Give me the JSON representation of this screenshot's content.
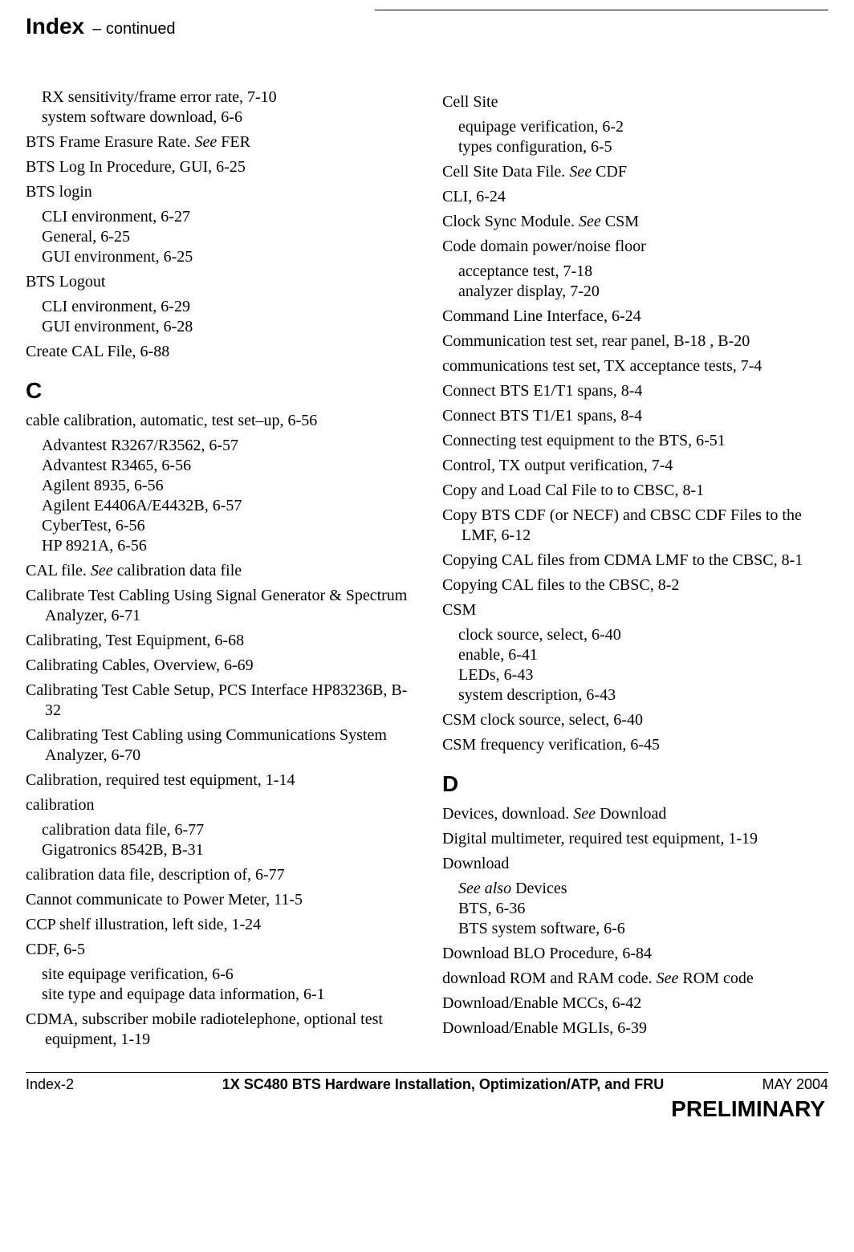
{
  "header": {
    "title": "Index",
    "suffix": "– continued"
  },
  "left_col": {
    "b_tail": {
      "rx": "RX sensitivity/frame error rate, 7-10",
      "sys": "system software download, 6-6",
      "bts_frame_a": "BTS Frame Erasure Rate. ",
      "bts_frame_see": "See",
      "bts_frame_b": " FER",
      "bts_login_proc": "BTS Log In Procedure, GUI, 6-25",
      "bts_login": "BTS login",
      "bts_login_cli": "CLI environment, 6-27",
      "bts_login_gen": "General, 6-25",
      "bts_login_gui": "GUI environment, 6-25",
      "bts_logout": "BTS Logout",
      "bts_logout_cli": "CLI environment, 6-29",
      "bts_logout_gui": "GUI environment, 6-28",
      "create_cal": "Create CAL File, 6-88"
    },
    "c": {
      "letter": "C",
      "cable_cal": "cable calibration, automatic, test set–up, 6-56",
      "adv_r3267": "Advantest R3267/R3562, 6-57",
      "adv_r3465": "Advantest R3465, 6-56",
      "ag_8935": "Agilent 8935, 6-56",
      "ag_e4406": "Agilent E4406A/E4432B, 6-57",
      "cybertest": "CyberTest, 6-56",
      "hp8921": "HP 8921A, 6-56",
      "cal_file_a": "CAL file. ",
      "cal_file_see": "See",
      "cal_file_b": " calibration data file",
      "cal_test_cabling": "Calibrate Test Cabling Using Signal Generator & Spectrum Analyzer, 6-71",
      "cal_test_eq": "Calibrating, Test Equipment, 6-68",
      "cal_cables_ov": "Calibrating Cables, Overview, 6-69",
      "cal_pcs": "Calibrating Test Cable Setup, PCS Interface HP83236B, B-32",
      "cal_comm_sys": "Calibrating Test Cabling using Communications System Analyzer, 6-70",
      "cal_req_eq": "Calibration, required test equipment, 1-14",
      "calibration": "calibration",
      "cal_data_file": "calibration data file, 6-77",
      "giga": "Gigatronics 8542B, B-31",
      "cal_data_desc": "calibration data file, description of, 6-77",
      "cannot_comm": "Cannot communicate to Power Meter, 11-5",
      "ccp_shelf": "CCP shelf illustration, left side, 1-24",
      "cdf": "CDF, 6-5",
      "cdf_site_eq": "site equipage verification, 6-6",
      "cdf_site_type": "site type and equipage data information, 6-1",
      "cdma": "CDMA, subscriber mobile radiotelephone, optional test equipment, 1-19"
    }
  },
  "right_col": {
    "c_cont": {
      "cell_site": "Cell Site",
      "cell_eq": "equipage verification, 6-2",
      "cell_types": "types configuration, 6-5",
      "cell_data_a": "Cell Site Data File. ",
      "cell_data_see": "See",
      "cell_data_b": " CDF",
      "cli": "CLI, 6-24",
      "clock_a": "Clock Sync Module. ",
      "clock_see": "See",
      "clock_b": " CSM",
      "code_domain": "Code domain power/noise floor",
      "code_accept": "acceptance test, 7-18",
      "code_analyzer": "analyzer display, 7-20",
      "cmd_line": "Command Line Interface, 6-24",
      "comm_test": "Communication test set, rear panel, B-18 , B-20",
      "comms_tx": "communications test set, TX acceptance tests, 7-4",
      "connect_e1t1": "Connect BTS E1/T1 spans, 8-4",
      "connect_t1e1": "Connect BTS T1/E1 spans, 8-4",
      "connecting_eq": "Connecting test equipment to the BTS, 6-51",
      "control_tx": "Control, TX output verification, 7-4",
      "copy_load": "Copy and Load Cal File to to CBSC, 8-1",
      "copy_bts_cdf": "Copy BTS CDF (or NECF) and CBSC CDF Files to the LMF, 6-12",
      "copying_cal_cdma": "Copying CAL files from CDMA LMF to the CBSC, 8-1",
      "copying_cal_cbsc": "Copying CAL files to the CBSC, 8-2",
      "csm": "CSM",
      "csm_clock": "clock source, select, 6-40",
      "csm_enable": "enable, 6-41",
      "csm_leds": "LEDs, 6-43",
      "csm_sys": "system description, 6-43",
      "csm_clock_sel": "CSM clock source, select, 6-40",
      "csm_freq": "CSM frequency verification, 6-45"
    },
    "d": {
      "letter": "D",
      "devices_a": "Devices, download. ",
      "devices_see": "See",
      "devices_b": " Download",
      "digital_mm": "Digital multimeter, required test equipment, 1-19",
      "download": "Download",
      "dl_seealso_i": "See also",
      "dl_seealso_b": " Devices",
      "dl_bts": "BTS, 6-36",
      "dl_bts_sys": "BTS system software, 6-6",
      "dl_blo": "Download BLO Procedure, 6-84",
      "dl_rom_a": "download ROM and RAM code. ",
      "dl_rom_see": "See",
      "dl_rom_b": " ROM code",
      "dl_en_mcc": "Download/Enable MCCs, 6-42",
      "dl_en_mgli": "Download/Enable MGLIs, 6-39"
    }
  },
  "footer": {
    "left": "Index-2",
    "center": "1X SC480 BTS Hardware Installation, Optimization/ATP, and FRU",
    "right": "MAY 2004",
    "preliminary": "PRELIMINARY"
  }
}
